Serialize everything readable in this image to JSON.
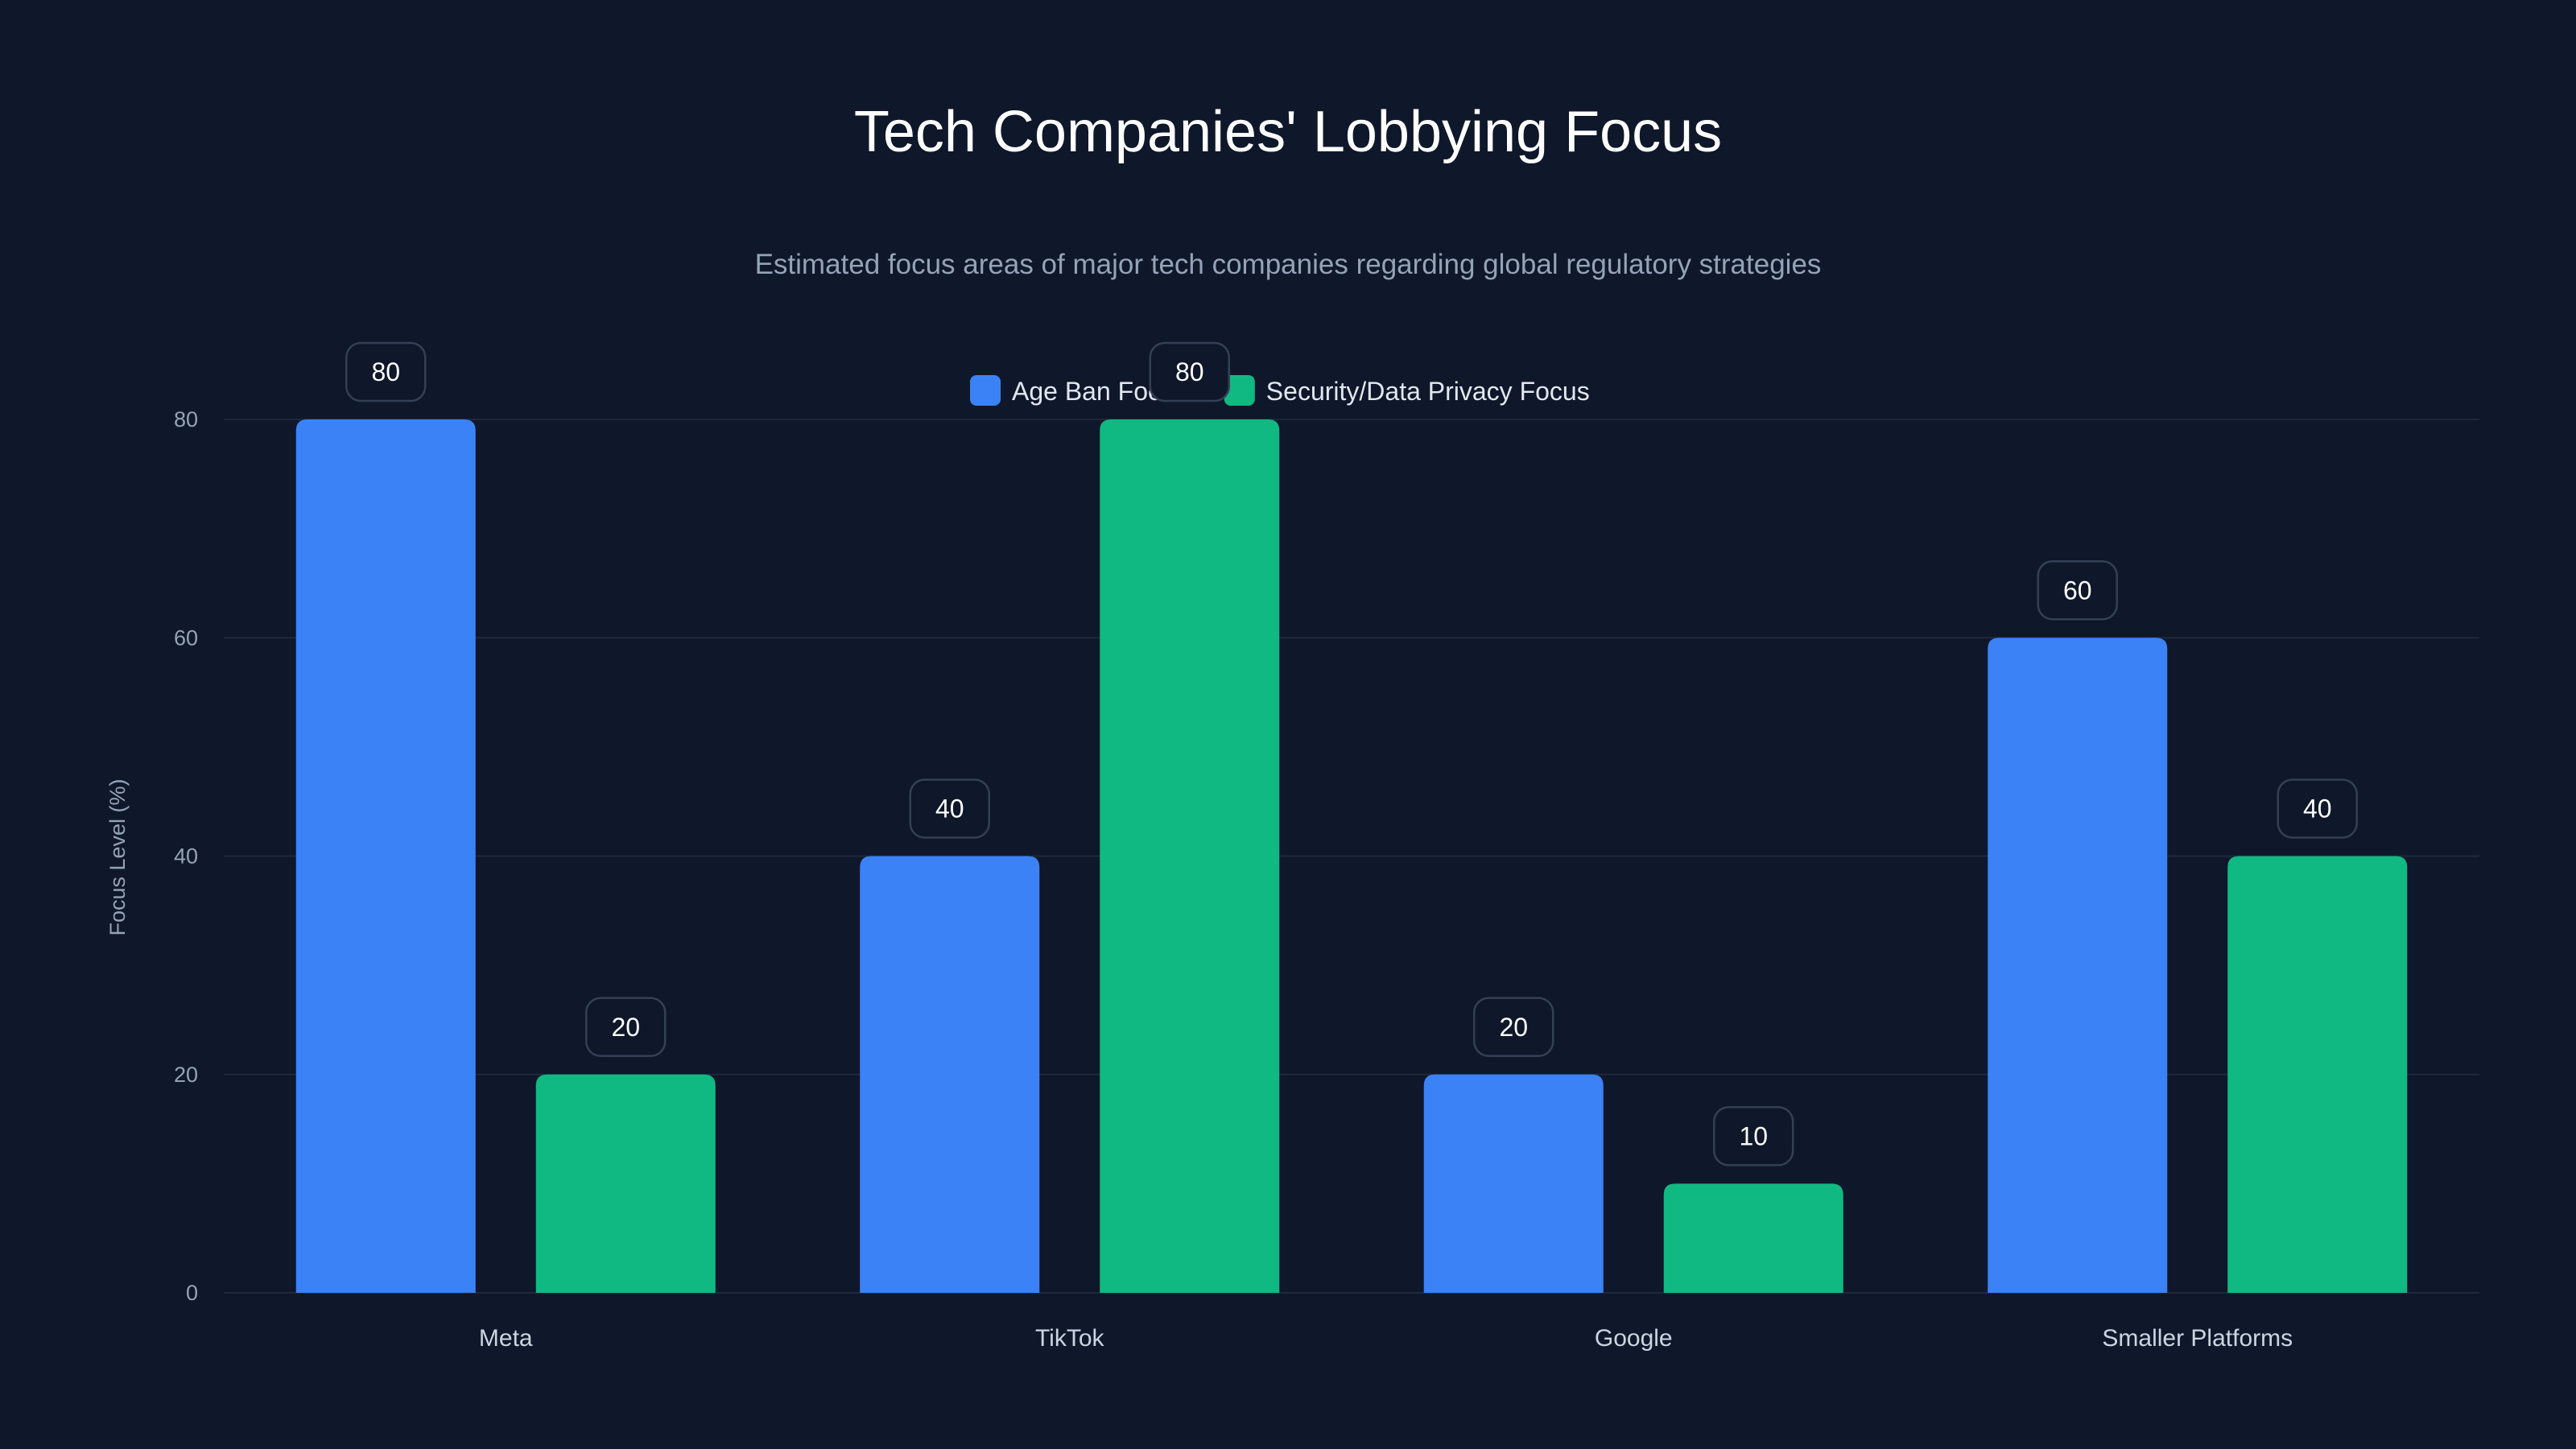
{
  "chart_data": {
    "type": "bar",
    "title": "Tech Companies' Lobbying Focus",
    "subtitle": "Estimated focus areas of major tech companies regarding global regulatory strategies",
    "xlabel": "",
    "ylabel": "Focus Level (%)",
    "ylim": [
      0,
      80
    ],
    "yticks": [
      0,
      20,
      40,
      60,
      80
    ],
    "grid": true,
    "legend_position": "top-center",
    "categories": [
      "Meta",
      "TikTok",
      "Google",
      "Smaller Platforms"
    ],
    "series": [
      {
        "name": "Age Ban Focus",
        "color": "#3b82f6",
        "values": [
          80,
          40,
          20,
          60
        ]
      },
      {
        "name": "Security/Data Privacy Focus",
        "color": "#10b981",
        "values": [
          20,
          80,
          10,
          40
        ]
      }
    ]
  }
}
